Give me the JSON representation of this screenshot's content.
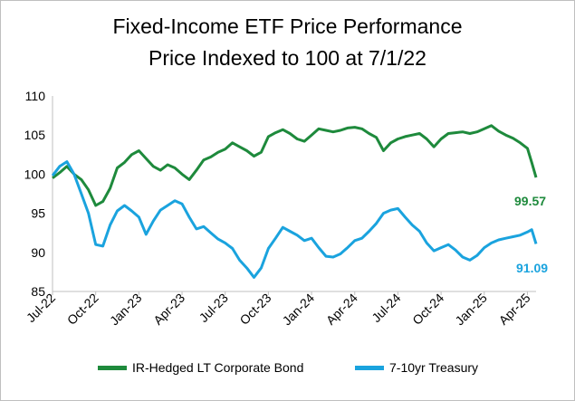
{
  "chart_data": {
    "type": "line",
    "title": "Fixed-Income ETF Price Performance",
    "subtitle": "Price Indexed to 100 at 7/1/22",
    "xlabel": "",
    "ylabel": "",
    "ylim": [
      85,
      110
    ],
    "yticks": [
      "85",
      "90",
      "95",
      "100",
      "105",
      "110"
    ],
    "xticks": [
      "Jul-22",
      "Oct-22",
      "Jan-23",
      "Apr-23",
      "Jul-23",
      "Oct-23",
      "Jan-24",
      "Apr-24",
      "Jul-24",
      "Oct-24",
      "Jan-25",
      "Apr-25"
    ],
    "x": [
      0,
      0.5,
      1,
      1.5,
      2,
      2.5,
      3,
      3.5,
      4,
      4.5,
      5,
      5.5,
      6,
      6.5,
      7,
      7.5,
      8,
      8.5,
      9,
      9.5,
      10,
      10.5,
      11,
      11.5,
      12,
      12.5,
      13,
      13.5,
      14,
      14.5,
      15,
      15.5,
      16,
      16.5,
      17,
      17.5,
      18,
      18.5,
      19,
      19.5,
      20,
      20.5,
      21,
      21.5,
      22,
      22.5,
      23,
      23.5,
      24,
      24.5,
      25,
      25.5,
      26,
      26.5,
      27,
      27.5,
      28,
      28.5,
      29,
      29.5,
      30,
      30.5,
      31,
      31.5,
      32,
      32.5,
      33,
      33.3,
      33.6
    ],
    "series": [
      {
        "name": "IR-Hedged LT Corporate Bond",
        "color": "#1e8a3c",
        "values": [
          99.5,
          100.2,
          101.0,
          100.0,
          99.3,
          98.0,
          96.0,
          96.5,
          98.2,
          100.8,
          101.5,
          102.5,
          103.0,
          102.0,
          101.0,
          100.5,
          101.2,
          100.8,
          100.0,
          99.3,
          100.5,
          101.8,
          102.2,
          102.8,
          103.2,
          104.0,
          103.5,
          103.0,
          102.3,
          102.8,
          104.8,
          105.3,
          105.7,
          105.2,
          104.5,
          104.2,
          105.0,
          105.8,
          105.6,
          105.4,
          105.6,
          105.9,
          106.0,
          105.8,
          105.2,
          104.7,
          103.0,
          104.0,
          104.5,
          104.8,
          105.0,
          105.2,
          104.5,
          103.5,
          104.5,
          105.2,
          105.3,
          105.4,
          105.2,
          105.4,
          105.8,
          106.2,
          105.5,
          105.0,
          104.6,
          104.0,
          103.3,
          101.5,
          99.57
        ]
      },
      {
        "name": "7-10yr Treasury",
        "color": "#1aa3de",
        "values": [
          99.8,
          101.0,
          101.6,
          100.0,
          97.5,
          95.0,
          91.0,
          90.8,
          93.5,
          95.3,
          96.0,
          95.3,
          94.5,
          92.3,
          94.0,
          95.4,
          96.0,
          96.6,
          96.2,
          94.5,
          93.0,
          93.3,
          92.5,
          91.7,
          91.2,
          90.5,
          89.0,
          88.0,
          86.8,
          88.0,
          90.5,
          91.8,
          93.2,
          92.7,
          92.2,
          91.5,
          91.8,
          90.6,
          89.5,
          89.4,
          89.8,
          90.6,
          91.5,
          91.8,
          92.7,
          93.7,
          95.0,
          95.4,
          95.6,
          94.5,
          93.5,
          92.7,
          91.2,
          90.2,
          90.6,
          91.0,
          90.3,
          89.4,
          89.0,
          89.6,
          90.6,
          91.2,
          91.6,
          91.8,
          92.0,
          92.2,
          92.6,
          92.9,
          91.09
        ]
      }
    ],
    "annotations": [
      "99.57",
      "91.09"
    ],
    "legend_position": "bottom"
  }
}
